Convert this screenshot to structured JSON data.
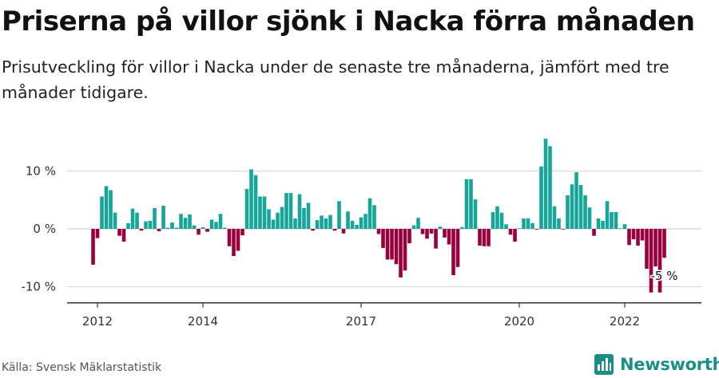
{
  "title": "Priserna på villor sjönk i Nacka förra månaden",
  "subtitle": "Prisutveckling för villor i Nacka under de senaste tre månaderna, jämfört med tre månader tidigare.",
  "source": "Källa: Svensk Mäklarstatistik",
  "brand": "Newsworthy",
  "colors": {
    "positive": "#17a499",
    "negative": "#99003d",
    "grid": "#d9d9d9",
    "axis": "#333333",
    "brand": "#1a8f86"
  },
  "chart_data": {
    "type": "bar",
    "y_tick_labels": [
      "10 %",
      "0 %",
      "-10 %"
    ],
    "y_ticks": [
      10,
      0,
      -10
    ],
    "ylim": [
      -12.8,
      12.8
    ],
    "x_tick_labels": [
      "2012",
      "2014",
      "2017",
      "2020",
      "2022"
    ],
    "x_ticks": [
      2012.0,
      2014.0,
      2017.0,
      2020.0,
      2022.0
    ],
    "x_start": 2011.917,
    "months_per_bar": 1,
    "annotation": {
      "text": "-5 %",
      "value": -5
    },
    "values": [
      -6.2,
      -1.6,
      5.6,
      7.4,
      6.7,
      2.8,
      -1.2,
      -2.2,
      1.0,
      3.5,
      2.8,
      -0.3,
      1.3,
      1.4,
      3.6,
      -0.4,
      4.0,
      0.2,
      1.1,
      0.2,
      2.6,
      1.9,
      2.5,
      0.6,
      -1.0,
      0.3,
      -0.5,
      1.6,
      1.2,
      2.6,
      0.2,
      -3.0,
      -4.7,
      -3.8,
      -1.1,
      6.9,
      10.3,
      9.3,
      5.6,
      5.6,
      3.4,
      1.6,
      2.8,
      3.8,
      6.2,
      6.2,
      1.8,
      6.0,
      3.6,
      4.5,
      -0.3,
      1.5,
      2.3,
      1.8,
      2.4,
      -0.3,
      4.8,
      -0.8,
      3.0,
      1.4,
      0.7,
      2.0,
      2.6,
      5.3,
      4.1,
      -0.9,
      -3.3,
      -5.3,
      -5.3,
      -6.1,
      -8.4,
      -7.2,
      -2.5,
      0.6,
      1.9,
      -0.9,
      -1.7,
      -0.8,
      -3.4,
      0.4,
      -1.5,
      -2.7,
      -8.0,
      -6.6,
      0.3,
      8.6,
      8.6,
      5.1,
      -2.9,
      -3.0,
      -3.0,
      2.9,
      3.9,
      2.8,
      0.8,
      -1.0,
      -2.2,
      0.1,
      1.8,
      1.8,
      1.0,
      -0.1,
      10.8,
      15.6,
      14.3,
      3.9,
      1.8,
      -0.1,
      5.8,
      7.7,
      9.8,
      7.6,
      5.8,
      3.7,
      -1.2,
      1.8,
      1.4,
      4.8,
      2.9,
      2.9,
      0.1,
      0.8,
      -2.8,
      -1.8,
      -2.9,
      -2.0,
      -6.9,
      -11.0,
      -6.5,
      -11.0,
      -5.0
    ]
  }
}
